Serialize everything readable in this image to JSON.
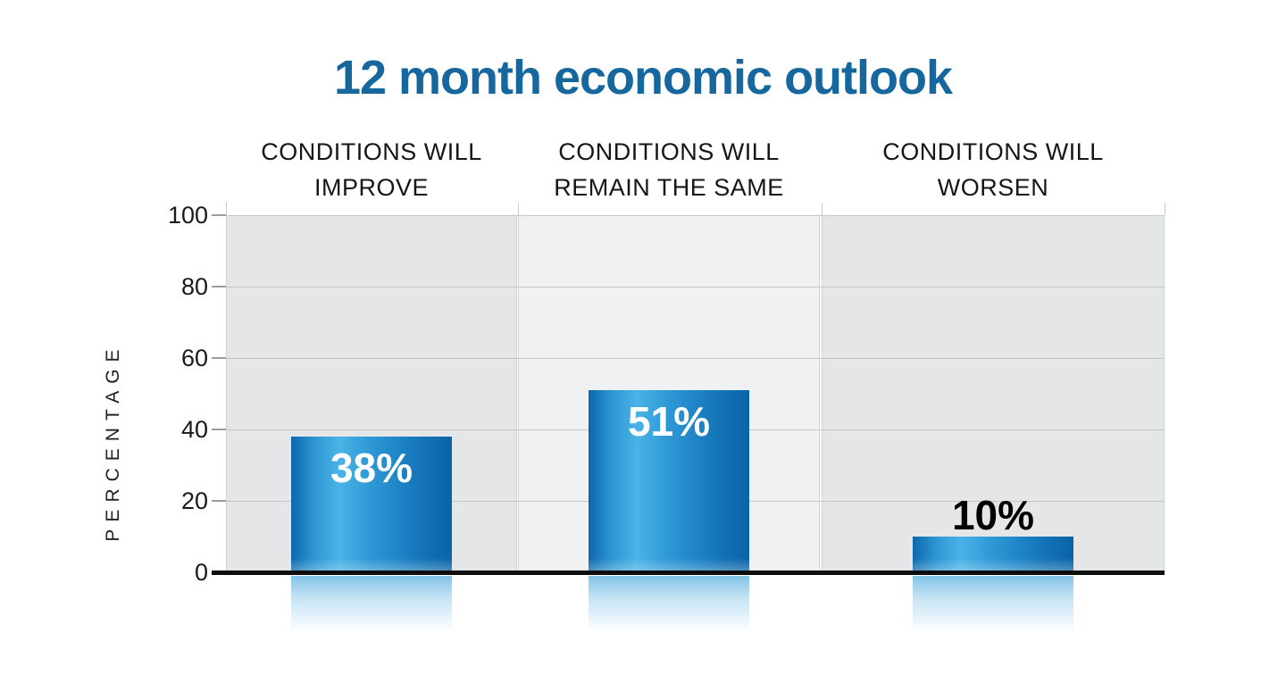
{
  "chart_data": {
    "type": "bar",
    "title": "12 month economic outlook",
    "ylabel": "PERCENTAGE",
    "xlabel": "",
    "ylim": [
      0,
      100
    ],
    "y_ticks": [
      "100",
      "80",
      "60",
      "40",
      "20",
      "0"
    ],
    "grid": "horizontal",
    "legend": "none",
    "categories": [
      "CONDITIONS WILL IMPROVE",
      "CONDITIONS WILL REMAIN THE SAME",
      "CONDITIONS WILL WORSEN"
    ],
    "category_label_lines": [
      [
        "CONDITIONS WILL",
        "IMPROVE"
      ],
      [
        "CONDITIONS WILL",
        "REMAIN THE SAME"
      ],
      [
        "CONDITIONS WILL",
        "WORSEN"
      ]
    ],
    "values": [
      38,
      51,
      10
    ],
    "value_labels": [
      "38%",
      "51%",
      "10%"
    ],
    "value_label_placement": [
      "inside-top",
      "inside-top",
      "above"
    ],
    "value_label_colors": [
      "#ffffff",
      "#ffffff",
      "#000000"
    ]
  },
  "colors": {
    "title_text": "#15679e",
    "bar_gradient": [
      "#0d67ac",
      "#2f97d3",
      "#4ab3e6",
      "#2f9ad6",
      "#1e83c6",
      "#1270b3",
      "#0b63a8"
    ],
    "panel_side": "#e5e6e8",
    "panel_middle": "#f0f1f2",
    "gridline": "#c3c5c9",
    "axis_line": "#0d0d0d",
    "reflection": "#79bee5"
  }
}
